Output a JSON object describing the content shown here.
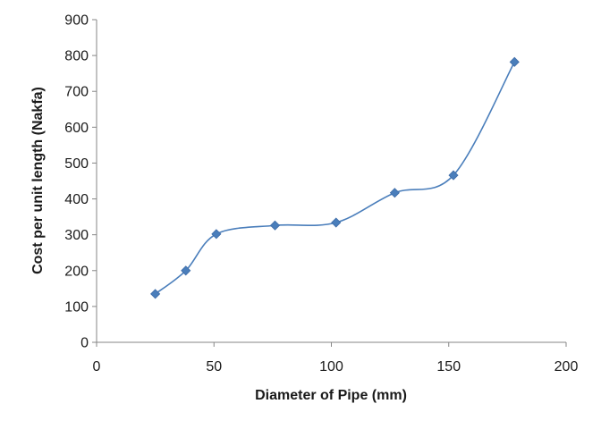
{
  "chart_data": {
    "type": "scatter",
    "title": "",
    "xlabel": "Diameter of Pipe (mm)",
    "ylabel": "Cost per unit length (Nakfa)",
    "xlim": [
      0,
      200
    ],
    "ylim": [
      0,
      900
    ],
    "xticks": [
      0,
      50,
      100,
      150,
      200
    ],
    "yticks": [
      0,
      100,
      200,
      300,
      400,
      500,
      600,
      700,
      800,
      900
    ],
    "grid": false,
    "legend": "none",
    "line_style": "smoothed",
    "marker": "diamond",
    "series_color": "#4a7ebb",
    "series": [
      {
        "x": [
          25,
          38,
          51,
          76,
          102,
          127,
          152,
          178
        ],
        "y": [
          135,
          200,
          302,
          326,
          334,
          417,
          466,
          782
        ]
      }
    ]
  }
}
